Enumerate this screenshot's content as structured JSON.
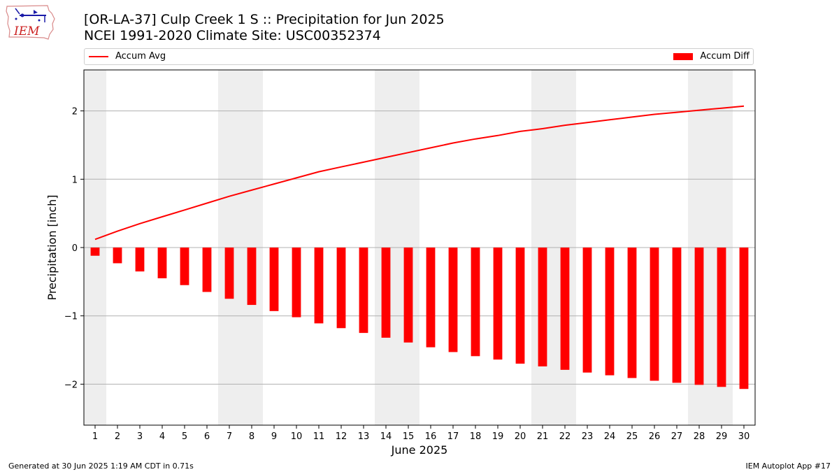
{
  "header": {
    "title_line1": "[OR-LA-37] Culp Creek 1 S :: Precipitation for Jun 2025",
    "title_line2": "NCEI 1991-2020 Climate Site: USC00352374"
  },
  "logo": {
    "text": "IEM",
    "icon": "iem-iowa-logo"
  },
  "footer": {
    "generated": "Generated at 30 Jun 2025 1:19 AM CDT in 0.71s",
    "app": "IEM Autoplot App #17"
  },
  "colors": {
    "series": "#ff0000",
    "weekend_shade": "#eeeeee",
    "grid": "#b0b0b0"
  },
  "chart_data": {
    "type": "bar",
    "xlabel": "June 2025",
    "ylabel": "Precipitation [inch]",
    "ylim": [
      -2.6,
      2.6
    ],
    "yticks": [
      2,
      1,
      0,
      -1,
      -2
    ],
    "ytick_labels": [
      "2",
      "1",
      "0",
      "−1",
      "−2"
    ],
    "grid": "horizontal",
    "legend_placement": "top",
    "categories": [
      "1",
      "2",
      "3",
      "4",
      "5",
      "6",
      "7",
      "8",
      "9",
      "10",
      "11",
      "12",
      "13",
      "14",
      "15",
      "16",
      "17",
      "18",
      "19",
      "20",
      "21",
      "22",
      "23",
      "24",
      "25",
      "26",
      "27",
      "28",
      "29",
      "30"
    ],
    "shaded_days": [
      1,
      7,
      8,
      14,
      15,
      21,
      22,
      28,
      29
    ],
    "series": [
      {
        "name": "Accum Avg",
        "type": "line",
        "values": [
          0.12,
          0.24,
          0.35,
          0.45,
          0.55,
          0.65,
          0.75,
          0.84,
          0.93,
          1.02,
          1.11,
          1.18,
          1.25,
          1.32,
          1.39,
          1.46,
          1.53,
          1.59,
          1.64,
          1.7,
          1.74,
          1.79,
          1.83,
          1.87,
          1.91,
          1.95,
          1.98,
          2.01,
          2.04,
          2.07
        ]
      },
      {
        "name": "Accum Diff",
        "type": "bar",
        "values": [
          -0.12,
          -0.23,
          -0.35,
          -0.45,
          -0.55,
          -0.65,
          -0.75,
          -0.84,
          -0.93,
          -1.02,
          -1.11,
          -1.18,
          -1.25,
          -1.32,
          -1.39,
          -1.46,
          -1.53,
          -1.59,
          -1.64,
          -1.7,
          -1.74,
          -1.79,
          -1.83,
          -1.87,
          -1.91,
          -1.95,
          -1.98,
          -2.01,
          -2.04,
          -2.07
        ]
      }
    ]
  }
}
